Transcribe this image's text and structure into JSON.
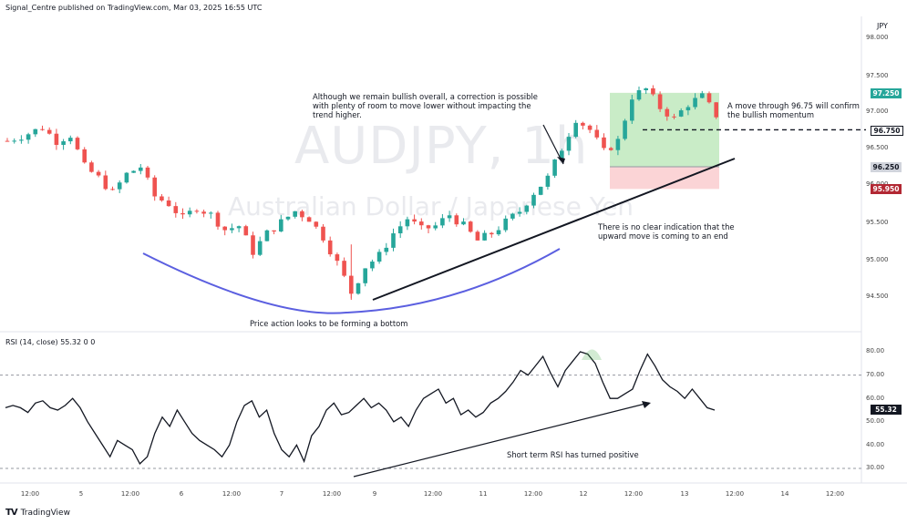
{
  "header": {
    "publisher_line": "Signal_Centre published on TradingView.com, Mar 03, 2025 16:55 UTC"
  },
  "watermark": {
    "symbol": "AUDJPY, 1h",
    "description": "Australian Dollar / Japanese Yen"
  },
  "currency_label": "JPY",
  "annotations": {
    "correction_note": "Although we remain bullish overall, a correction is possible\nwith plenty of room to move lower without impacting the\ntrend higher.",
    "confirm_note": "A move through 96.75 will confirm\nthe bullish momentum",
    "no_clear_note": "There is no clear indication that the\nupward move is coming to an end",
    "bottom_note": "Price action looks to be forming a bottom",
    "rsi_note": "Short term RSI has turned positive"
  },
  "price_axis": {
    "ticks": [
      "98.000",
      "97.500",
      "97.000",
      "96.500",
      "96.000",
      "95.500",
      "95.000",
      "94.500"
    ]
  },
  "price_tags": [
    {
      "label": "97.250",
      "bg": "#26a69a",
      "fg": "#ffffff"
    },
    {
      "label": "96.750",
      "bg": "#ffffff",
      "fg": "#131722"
    },
    {
      "label": "96.250",
      "bg": "#d1d4dc",
      "fg": "#131722"
    },
    {
      "label": "95.950",
      "bg": "#b22833",
      "fg": "#ffffff"
    }
  ],
  "rsi": {
    "label": "RSI (14, close)  55.32  0  0",
    "value_tag": "55.32",
    "axis_ticks": [
      "80.00",
      "70.00",
      "60.00",
      "50.00",
      "40.00",
      "30.00"
    ]
  },
  "time_axis": [
    "12:00",
    "5",
    "12:00",
    "6",
    "12:00",
    "7",
    "12:00",
    "9",
    "12:00",
    "11",
    "12:00",
    "12",
    "12:00",
    "13",
    "12:00",
    "14",
    "12:00"
  ],
  "brand": {
    "name": "TradingView",
    "logo_text": "TV"
  },
  "chart_data": {
    "type": "candlestick",
    "symbol": "AUDJPY",
    "timeframe": "1h",
    "ylim": [
      94.2,
      98.1
    ],
    "x_range_days": [
      "Mar 4",
      "Mar 14"
    ],
    "price_path": [
      [
        0,
        96.6
      ],
      [
        3,
        96.7
      ],
      [
        5,
        96.78
      ],
      [
        7,
        96.6
      ],
      [
        9,
        96.68
      ],
      [
        11,
        96.25
      ],
      [
        13,
        96.1
      ],
      [
        15,
        95.9
      ],
      [
        17,
        96.15
      ],
      [
        19,
        96.25
      ],
      [
        21,
        95.85
      ],
      [
        23,
        95.75
      ],
      [
        25,
        95.55
      ],
      [
        27,
        95.7
      ],
      [
        29,
        95.6
      ],
      [
        31,
        95.4
      ],
      [
        33,
        95.45
      ],
      [
        35,
        95.1
      ],
      [
        37,
        95.35
      ],
      [
        39,
        95.5
      ],
      [
        41,
        95.65
      ],
      [
        43,
        95.55
      ],
      [
        45,
        95.3
      ],
      [
        47,
        94.95
      ],
      [
        49,
        94.55
      ],
      [
        51,
        94.9
      ],
      [
        53,
        95.05
      ],
      [
        55,
        95.35
      ],
      [
        57,
        95.55
      ],
      [
        59,
        95.4
      ],
      [
        61,
        95.45
      ],
      [
        63,
        95.6
      ],
      [
        65,
        95.45
      ],
      [
        67,
        95.25
      ],
      [
        69,
        95.35
      ],
      [
        71,
        95.5
      ],
      [
        73,
        95.65
      ],
      [
        75,
        95.9
      ],
      [
        77,
        96.1
      ],
      [
        79,
        96.5
      ],
      [
        81,
        96.9
      ],
      [
        83,
        96.75
      ],
      [
        85,
        96.45
      ],
      [
        87,
        96.6
      ],
      [
        89,
        97.2
      ],
      [
        91,
        97.3
      ],
      [
        93,
        97.05
      ],
      [
        95,
        96.9
      ],
      [
        97,
        97.1
      ],
      [
        99,
        97.2
      ],
      [
        101,
        96.95
      ]
    ],
    "trade_box": {
      "entry": 96.25,
      "target": 97.25,
      "stop": 95.95
    },
    "confirm_level": 96.75,
    "rsi_values": [
      56,
      57,
      56,
      54,
      58,
      59,
      56,
      55,
      57,
      60,
      56,
      50,
      45,
      40,
      35,
      42,
      40,
      38,
      32,
      35,
      45,
      52,
      48,
      55,
      50,
      45,
      42,
      40,
      38,
      35,
      40,
      50,
      57,
      59,
      52,
      55,
      45,
      38,
      35,
      40,
      33,
      44,
      48,
      55,
      58,
      53,
      54,
      57,
      60,
      56,
      58,
      55,
      50,
      52,
      48,
      55,
      60,
      62,
      64,
      58,
      60,
      53,
      55,
      52,
      54,
      58,
      60,
      63,
      67,
      72,
      70,
      74,
      78,
      71,
      65,
      72,
      76,
      80,
      79,
      75,
      67,
      60,
      60,
      62,
      64,
      72,
      79,
      74,
      68,
      65,
      63,
      60,
      64,
      60,
      56,
      55
    ],
    "rsi_levels": [
      70,
      30
    ],
    "rsi_current": 55.32,
    "colors": {
      "up": "#26a69a",
      "down": "#ef5350",
      "arc": "#5b5fe0",
      "profit_zone": "#c9ecc7",
      "loss_zone": "#fbd4d6"
    }
  }
}
